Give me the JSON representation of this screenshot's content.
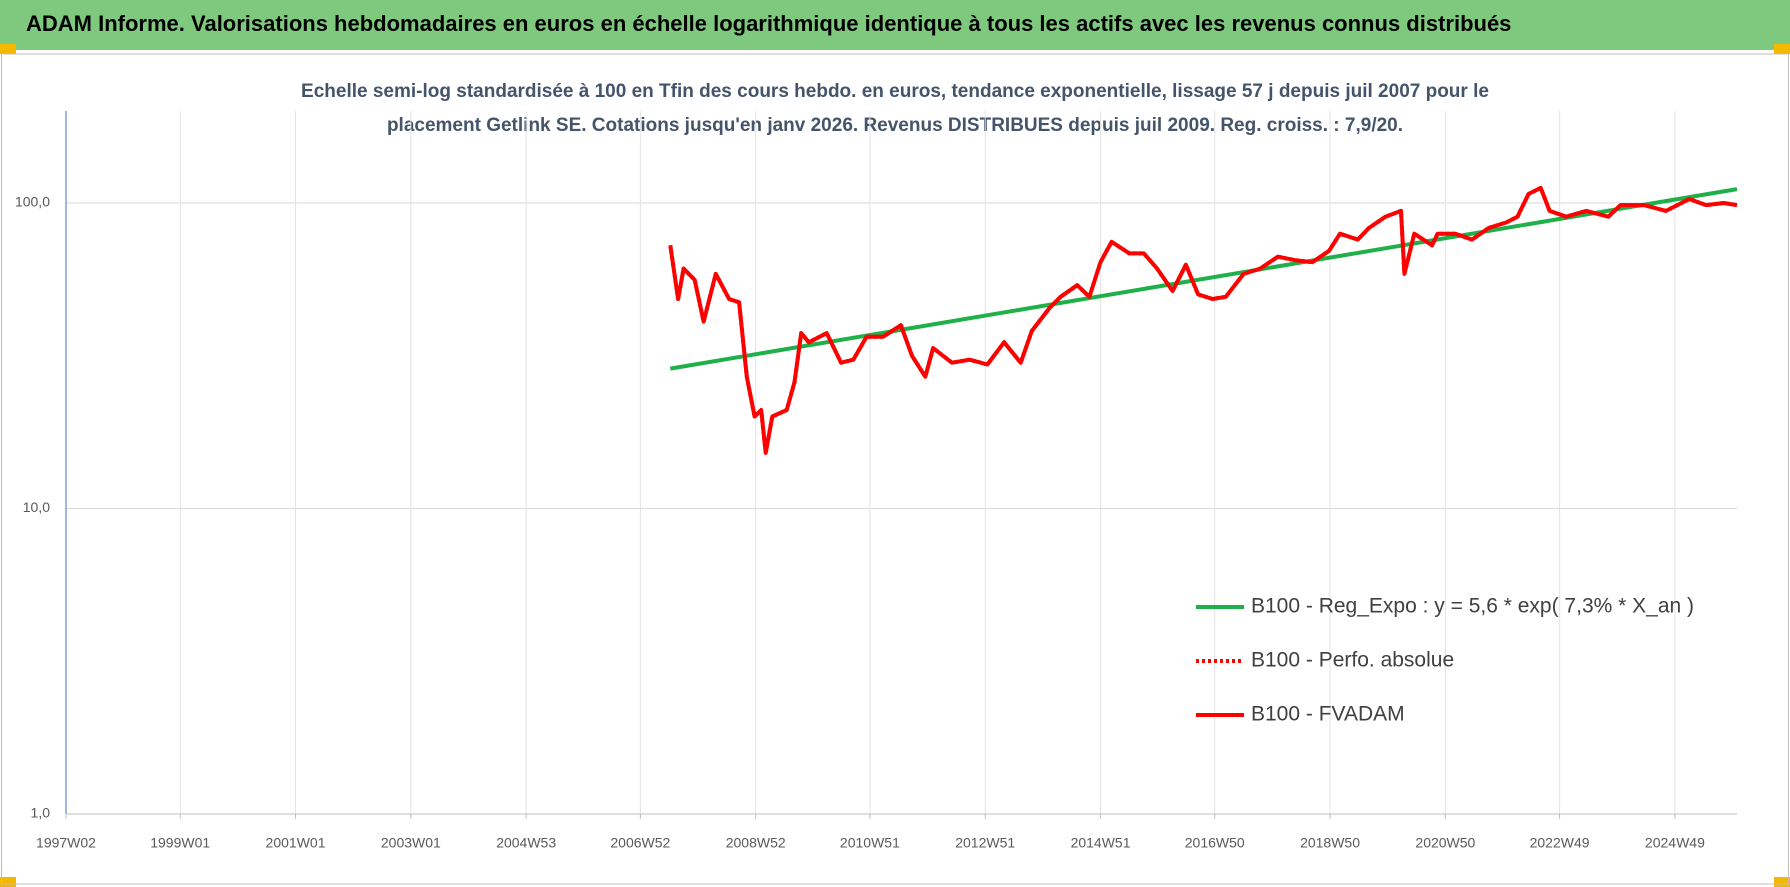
{
  "chart_data": {
    "type": "line",
    "title": "ADAM Informe. Valorisations hebdomadaires en euros en échelle logarithmique identique à tous les actifs avec les revenus connus distribués",
    "subtitle": [
      "Echelle semi-log standardisée à 100 en Tfin des cours hebdo. en euros, tendance exponentielle, lissage 57 j depuis juil 2007 pour le",
      "placement Getlink SE. Cotations jusqu'en janv 2026. Revenus DISTRIBUES depuis juil 2009. Reg. croiss. : 7,9/20."
    ],
    "log_y": true,
    "grid": true,
    "legend": "lower-right",
    "xlim": [
      "1997W02",
      "2026W01"
    ],
    "xticks": [
      "1997W02",
      "1999W01",
      "2001W01",
      "2003W01",
      "2004W53",
      "2006W52",
      "2008W52",
      "2010W51",
      "2012W51",
      "2014W51",
      "2016W50",
      "2018W50",
      "2020W50",
      "2022W49",
      "2024W49"
    ],
    "ylim": [
      1,
      200
    ],
    "yticks": [
      {
        "value": 1,
        "label": "1,0"
      },
      {
        "value": 10,
        "label": "10,0"
      },
      {
        "value": 100,
        "label": "100,0"
      }
    ],
    "series": [
      {
        "name": "B100 - Reg_Expo : y = 5,6 * exp( 7,3% *  X_an )",
        "color": "#1fb04a",
        "style": "solid",
        "x": [
          "2007W27",
          "2026W01"
        ],
        "values": [
          28.7,
          111
        ]
      },
      {
        "name": "B100 - Perfo. absolue",
        "color": "#ff0000",
        "style": "dotted",
        "x": [
          "2007W27",
          "2007W34",
          "2007W39",
          "2007W49",
          "2008W05",
          "2008W16",
          "2008W28",
          "2008W37",
          "2008W44",
          "2008W51",
          "2009W05",
          "2009W09",
          "2009W15",
          "2009W28",
          "2009W35",
          "2009W41",
          "2009W48",
          "2010W12",
          "2010W25",
          "2010W36",
          "2010W48",
          "2011W11",
          "2011W27",
          "2011W37",
          "2011W49",
          "2012W04",
          "2012W21",
          "2012W37",
          "2013W01",
          "2013W16",
          "2013W31",
          "2013W41",
          "2014W05",
          "2014W15",
          "2014W30",
          "2014W41",
          "2014W51",
          "2015W09",
          "2015W25",
          "2015W38",
          "2015W50",
          "2016W12",
          "2016W24",
          "2016W35",
          "2016W48",
          "2017W08",
          "2017W24",
          "2017W39",
          "2018W03",
          "2018W18",
          "2018W34",
          "2018W49",
          "2019W07",
          "2019W23",
          "2019W33",
          "2019W48",
          "2020W10",
          "2020W13",
          "2020W22",
          "2020W38",
          "2020W43",
          "2021W07",
          "2021W22",
          "2021W37",
          "2022W01",
          "2022W11",
          "2022W21",
          "2022W32",
          "2022W40",
          "2023W03",
          "2023W21",
          "2023W41",
          "2023W52",
          "2024W21",
          "2024W41",
          "2025W10",
          "2025W25",
          "2025W41",
          "2026W01"
        ],
        "values": [
          72.7,
          48.5,
          61,
          56,
          40.9,
          58.6,
          48.5,
          47.3,
          27,
          20,
          21,
          15.2,
          20,
          21,
          25.9,
          37.5,
          35,
          37.5,
          30,
          30.7,
          36.5,
          36.5,
          39.8,
          31.6,
          27,
          33.5,
          30,
          30.7,
          29.6,
          35,
          30,
          38.1,
          45.3,
          49.3,
          53.8,
          49.3,
          64,
          74.6,
          68.4,
          68.4,
          61,
          51.5,
          62.8,
          50.2,
          48.5,
          49.3,
          58.6,
          61,
          66.7,
          65,
          64,
          69.7,
          79.3,
          75.9,
          82.8,
          90.2,
          94.2,
          58.6,
          79.3,
          72.7,
          79.3,
          79.3,
          75.9,
          82.8,
          86.4,
          90.2,
          107,
          112,
          94.2,
          90.2,
          94.2,
          90.2,
          98.4,
          98.4,
          94.2,
          103,
          98.4,
          100,
          98.4
        ]
      },
      {
        "name": "B100 - FVADAM",
        "color": "#ff0000",
        "style": "solid",
        "x": [
          "2007W27",
          "2007W34",
          "2007W39",
          "2007W49",
          "2008W05",
          "2008W16",
          "2008W28",
          "2008W37",
          "2008W44",
          "2008W51",
          "2009W05",
          "2009W09",
          "2009W15",
          "2009W28",
          "2009W35",
          "2009W41",
          "2009W48",
          "2010W12",
          "2010W25",
          "2010W36",
          "2010W48",
          "2011W11",
          "2011W27",
          "2011W37",
          "2011W49",
          "2012W04",
          "2012W21",
          "2012W37",
          "2013W01",
          "2013W16",
          "2013W31",
          "2013W41",
          "2014W05",
          "2014W15",
          "2014W30",
          "2014W41",
          "2014W51",
          "2015W09",
          "2015W25",
          "2015W38",
          "2015W50",
          "2016W12",
          "2016W24",
          "2016W35",
          "2016W48",
          "2017W08",
          "2017W24",
          "2017W39",
          "2018W03",
          "2018W18",
          "2018W34",
          "2018W49",
          "2019W07",
          "2019W23",
          "2019W33",
          "2019W48",
          "2020W10",
          "2020W13",
          "2020W22",
          "2020W38",
          "2020W43",
          "2021W07",
          "2021W22",
          "2021W37",
          "2022W01",
          "2022W11",
          "2022W21",
          "2022W32",
          "2022W40",
          "2023W03",
          "2023W21",
          "2023W41",
          "2023W52",
          "2024W21",
          "2024W41",
          "2025W10",
          "2025W25",
          "2025W41",
          "2026W01"
        ],
        "values": [
          72.7,
          48.5,
          61,
          56,
          40.9,
          58.6,
          48.5,
          47.3,
          27,
          20,
          21,
          15.2,
          20,
          21,
          25.9,
          37.5,
          35,
          37.5,
          30,
          30.7,
          36.5,
          36.5,
          39.8,
          31.6,
          27,
          33.5,
          30,
          30.7,
          29.6,
          35,
          30,
          38.1,
          45.3,
          49.3,
          53.8,
          49.3,
          64,
          74.6,
          68.4,
          68.4,
          61,
          51.5,
          62.8,
          50.2,
          48.5,
          49.3,
          58.6,
          61,
          66.7,
          65,
          64,
          69.7,
          79.3,
          75.9,
          82.8,
          90.2,
          94.2,
          58.6,
          79.3,
          72.7,
          79.3,
          79.3,
          75.9,
          82.8,
          86.4,
          90.2,
          107,
          112,
          94.2,
          90.2,
          94.2,
          90.2,
          98.4,
          98.4,
          94.2,
          103,
          98.4,
          100,
          98.4
        ]
      }
    ]
  }
}
